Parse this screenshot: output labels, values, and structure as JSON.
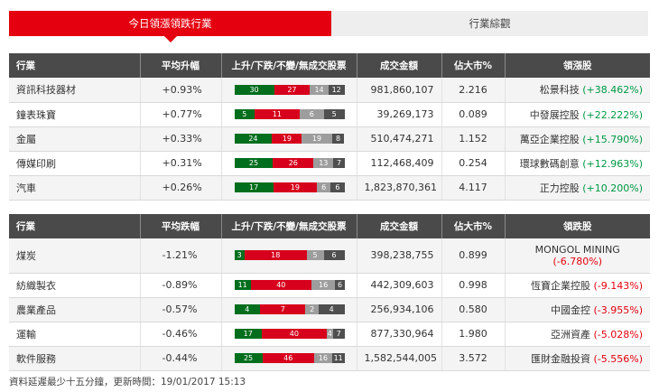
{
  "tabs": [
    {
      "label": "今日領漲領跌行業"
    },
    {
      "label": "行業綜觀"
    }
  ],
  "gainers_headers": [
    "行業",
    "平均升幅",
    "上升/下跌/不變/無成交股票",
    "成交金額",
    "佔大市%",
    "領漲股"
  ],
  "gainers": [
    {
      "sector": "資訊科技器材",
      "change": "+0.93%",
      "up": 30,
      "down": 27,
      "flat": 14,
      "none": 12,
      "amount": "981,860,107",
      "pct": "2.216",
      "leader": "松景科技",
      "leader_change": "(+38.462%)"
    },
    {
      "sector": "鐘表珠寶",
      "change": "+0.77%",
      "up": 5,
      "down": 11,
      "flat": 6,
      "none": 5,
      "amount": "39,269,173",
      "pct": "0.089",
      "leader": "中發展控股",
      "leader_change": "(+22.222%)"
    },
    {
      "sector": "金屬",
      "change": "+0.33%",
      "up": 24,
      "down": 19,
      "flat": 19,
      "none": 8,
      "amount": "510,474,271",
      "pct": "1.152",
      "leader": "萬亞企業控股",
      "leader_change": "(+15.790%)"
    },
    {
      "sector": "傳媒印刷",
      "change": "+0.31%",
      "up": 25,
      "down": 26,
      "flat": 13,
      "none": 7,
      "amount": "112,468,409",
      "pct": "0.254",
      "leader": "環球數碼創意",
      "leader_change": "(+12.963%)"
    },
    {
      "sector": "汽車",
      "change": "+0.26%",
      "up": 17,
      "down": 19,
      "flat": 6,
      "none": 6,
      "amount": "1,823,870,361",
      "pct": "4.117",
      "leader": "正力控股",
      "leader_change": "(+10.200%)"
    }
  ],
  "losers_headers": [
    "行業",
    "平均跌幅",
    "上升/下跌/不變/無成交股票",
    "成交金額",
    "佔大市%",
    "領跌股"
  ],
  "losers": [
    {
      "sector": "煤炭",
      "change": "-1.21%",
      "up": 3,
      "down": 18,
      "flat": 5,
      "none": 6,
      "amount": "398,238,755",
      "pct": "0.899",
      "leader": "MONGOL MINING",
      "leader_change": "(-6.780%)"
    },
    {
      "sector": "紡織製衣",
      "change": "-0.89%",
      "up": 11,
      "down": 40,
      "flat": 16,
      "none": 6,
      "amount": "442,309,603",
      "pct": "0.998",
      "leader": "恆寶企業控股",
      "leader_change": "(-9.143%)"
    },
    {
      "sector": "農業產品",
      "change": "-0.57%",
      "up": 4,
      "down": 7,
      "flat": 2,
      "none": 4,
      "amount": "256,934,106",
      "pct": "0.580",
      "leader": "中國金控",
      "leader_change": "(-3.955%)"
    },
    {
      "sector": "運輸",
      "change": "-0.46%",
      "up": 17,
      "down": 40,
      "flat": 4,
      "none": 7,
      "amount": "877,330,964",
      "pct": "1.980",
      "leader": "亞洲資產",
      "leader_change": "(-5.028%)"
    },
    {
      "sector": "軟件服務",
      "change": "-0.44%",
      "up": 25,
      "down": 46,
      "flat": 16,
      "none": 11,
      "amount": "1,582,544,005",
      "pct": "3.572",
      "leader": "匯財金融投資",
      "leader_change": "(-5.556%)"
    }
  ],
  "colors": {
    "accent": "#e4000f",
    "up_bar": "#006e1d",
    "down_bar": "#d7001c",
    "flat_bar": "#9d9d9d",
    "none_bar": "#4f4f4f",
    "header_bg": "#4a4a4a"
  },
  "footer": "資料延遲最少十五分鐘，更新時間：19/01/2017 15:13"
}
